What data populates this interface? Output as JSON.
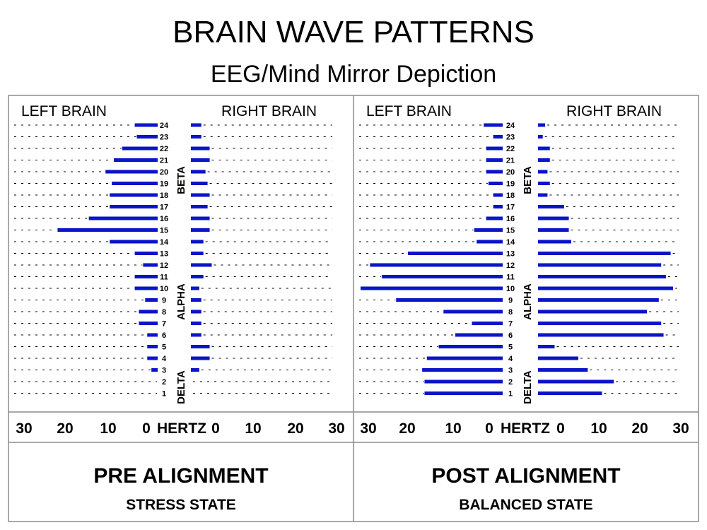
{
  "title": "BRAIN WAVE PATTERNS",
  "subtitle": "EEG/Mind Mirror Depiction",
  "colors": {
    "bar": "#0a14c8",
    "grid": "#000000",
    "border": "#8c8c8c"
  },
  "side_labels": {
    "left": "LEFT BRAIN",
    "right": "RIGHT BRAIN"
  },
  "hertz_label": "HERTZ",
  "band_labels": [
    "BETA",
    "ALPHA",
    "DELTA"
  ],
  "axis_ticks": [
    "30",
    "20",
    "10",
    "0"
  ],
  "chart_data": [
    {
      "type": "bar",
      "orientation": "horizontal-mirror",
      "caption": "PRE ALIGNMENT",
      "state": "STRESS STATE",
      "rows": [
        24,
        23,
        22,
        21,
        20,
        19,
        18,
        17,
        16,
        15,
        14,
        13,
        12,
        11,
        10,
        9,
        8,
        7,
        6,
        5,
        4,
        3,
        2,
        1
      ],
      "xlim": [
        0,
        30
      ],
      "series": [
        {
          "name": "LEFT BRAIN",
          "values": [
            5.5,
            5,
            8.5,
            10.5,
            12.5,
            11,
            11.5,
            11.5,
            16.5,
            24,
            11.5,
            5.5,
            3.5,
            5.5,
            5.5,
            3,
            4.5,
            4.5,
            2.5,
            2.5,
            2.5,
            1.5,
            0,
            0
          ]
        },
        {
          "name": "RIGHT BRAIN",
          "values": [
            2.5,
            2.5,
            4.5,
            4.5,
            3.5,
            4,
            4.5,
            4,
            4.5,
            4.5,
            3,
            3,
            5,
            3,
            2,
            2.5,
            2.5,
            2.5,
            2.5,
            4.5,
            4.5,
            2,
            0,
            0
          ]
        }
      ]
    },
    {
      "type": "bar",
      "orientation": "horizontal-mirror",
      "caption": "POST ALIGNMENT",
      "state": "BALANCED STATE",
      "rows": [
        24,
        23,
        22,
        21,
        20,
        19,
        18,
        17,
        16,
        15,
        14,
        13,
        12,
        11,
        10,
        9,
        8,
        7,
        6,
        5,
        4,
        3,
        2,
        1
      ],
      "xlim": [
        0,
        30
      ],
      "series": [
        {
          "name": "LEFT BRAIN",
          "values": [
            4,
            2,
            3.5,
            3.5,
            3.5,
            3,
            2,
            2,
            3.5,
            6,
            5.5,
            20,
            28,
            25.5,
            30,
            22.5,
            12.5,
            6.5,
            10,
            13.5,
            16,
            17,
            16.5,
            16.5
          ]
        },
        {
          "name": "RIGHT BRAIN",
          "values": [
            1.5,
            1,
            2.5,
            2.5,
            2,
            2.5,
            2,
            5.5,
            6.5,
            6.5,
            7,
            28,
            26,
            27,
            28.5,
            25.5,
            23,
            26,
            26.5,
            3.5,
            8.5,
            10.5,
            16,
            13.5
          ]
        }
      ]
    }
  ]
}
